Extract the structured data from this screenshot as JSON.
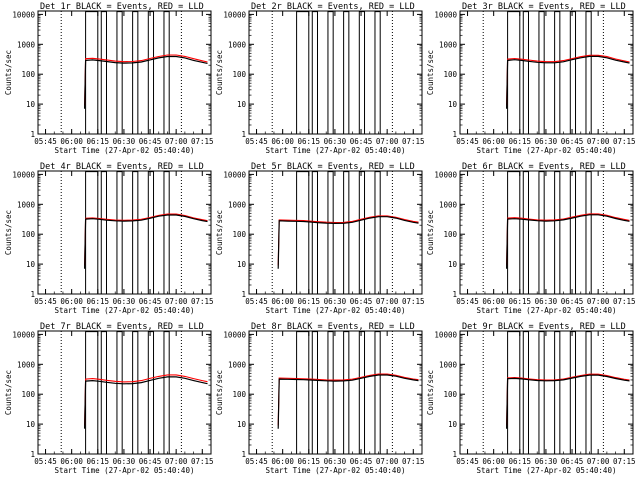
{
  "colors": {
    "events": "#000000",
    "lld": "#ff0000",
    "background": "#ffffff"
  },
  "common": {
    "x_ticks": [
      "05:45",
      "06:00",
      "06:15",
      "06:30",
      "06:45",
      "07:00",
      "07:15"
    ],
    "y_ticks": [
      "1",
      "10",
      "100",
      "1000",
      "10000"
    ],
    "ylabel": "Counts/sec",
    "xlabel": "Start Time (27-Apr-02 05:40:40)"
  },
  "chart_data": [
    {
      "type": "line",
      "title": "Det 1r BLACK = Events, RED = LLD",
      "xlabel": "Start Time (27-Apr-02 05:40:40)",
      "ylabel": "Counts/sec",
      "yscale": "log",
      "ylim": [
        1,
        13000
      ],
      "x": [
        "06:08",
        "06:12",
        "06:16",
        "06:20",
        "06:25",
        "06:30",
        "06:35",
        "06:40",
        "06:45",
        "06:50",
        "06:55",
        "07:00",
        "07:05",
        "07:10",
        "07:15",
        "07:18"
      ],
      "series": [
        {
          "name": "BLACK = Events",
          "values": [
            290,
            300,
            285,
            265,
            245,
            235,
            238,
            255,
            300,
            350,
            390,
            390,
            350,
            290,
            250,
            230
          ]
        },
        {
          "name": "RED = LLD",
          "values": [
            330,
            340,
            320,
            300,
            275,
            262,
            265,
            285,
            335,
            390,
            440,
            440,
            395,
            330,
            280,
            255
          ]
        }
      ],
      "dashed_x": [
        "05:54",
        "07:03"
      ],
      "gaps": [
        [
          "06:08",
          "06:15"
        ],
        [
          "06:17",
          "06:20"
        ],
        [
          "06:26",
          "06:29"
        ],
        [
          "06:35",
          "06:38"
        ],
        [
          "06:44",
          "06:47"
        ],
        [
          "06:53",
          "06:56"
        ]
      ]
    },
    {
      "type": "line",
      "title": "Det 2r BLACK = Events, RED = LLD",
      "xlabel": "Start Time (27-Apr-02 05:40:40)",
      "ylabel": "Counts/sec",
      "yscale": "log",
      "ylim": [
        1,
        13000
      ],
      "x": [],
      "series": [],
      "dashed_x": [
        "05:54",
        "07:03"
      ],
      "gaps": [
        [
          "06:08",
          "06:15"
        ],
        [
          "06:17",
          "06:20"
        ],
        [
          "06:26",
          "06:29"
        ],
        [
          "06:35",
          "06:38"
        ],
        [
          "06:44",
          "06:47"
        ],
        [
          "06:53",
          "06:56"
        ]
      ]
    },
    {
      "type": "line",
      "title": "Det 3r BLACK = Events, RED = LLD",
      "xlabel": "Start Time (27-Apr-02 05:40:40)",
      "ylabel": "Counts/sec",
      "yscale": "log",
      "ylim": [
        1,
        13000
      ],
      "x": [
        "06:08",
        "06:12",
        "06:16",
        "06:20",
        "06:25",
        "06:30",
        "06:35",
        "06:40",
        "06:45",
        "06:50",
        "06:55",
        "07:00",
        "07:05",
        "07:10",
        "07:15",
        "07:18"
      ],
      "series": [
        {
          "name": "BLACK = Events",
          "values": [
            290,
            305,
            290,
            270,
            250,
            240,
            240,
            260,
            305,
            355,
            395,
            395,
            355,
            295,
            255,
            235
          ]
        },
        {
          "name": "RED = LLD",
          "values": [
            320,
            335,
            318,
            298,
            275,
            262,
            262,
            285,
            332,
            385,
            430,
            430,
            388,
            322,
            278,
            255
          ]
        }
      ],
      "dashed_x": [
        "05:54",
        "07:03"
      ],
      "gaps": [
        [
          "06:08",
          "06:15"
        ],
        [
          "06:17",
          "06:20"
        ],
        [
          "06:26",
          "06:29"
        ],
        [
          "06:35",
          "06:38"
        ],
        [
          "06:44",
          "06:47"
        ],
        [
          "06:53",
          "06:56"
        ]
      ]
    },
    {
      "type": "line",
      "title": "Det 4r BLACK = Events, RED = LLD",
      "xlabel": "Start Time (27-Apr-02 05:40:40)",
      "ylabel": "Counts/sec",
      "yscale": "log",
      "ylim": [
        1,
        13000
      ],
      "x": [
        "06:08",
        "06:12",
        "06:16",
        "06:20",
        "06:25",
        "06:30",
        "06:35",
        "06:40",
        "06:45",
        "06:50",
        "06:55",
        "07:00",
        "07:05",
        "07:10",
        "07:15",
        "07:18"
      ],
      "series": [
        {
          "name": "BLACK = Events",
          "values": [
            320,
            330,
            315,
            295,
            280,
            275,
            278,
            295,
            340,
            400,
            440,
            440,
            395,
            330,
            285,
            265
          ]
        },
        {
          "name": "RED = LLD",
          "values": [
            340,
            352,
            335,
            315,
            298,
            292,
            296,
            315,
            362,
            425,
            470,
            470,
            422,
            352,
            305,
            282
          ]
        }
      ],
      "dashed_x": [
        "05:54",
        "07:03"
      ],
      "gaps": [
        [
          "06:08",
          "06:15"
        ],
        [
          "06:17",
          "06:20"
        ],
        [
          "06:26",
          "06:29"
        ],
        [
          "06:35",
          "06:38"
        ],
        [
          "06:44",
          "06:47"
        ],
        [
          "06:53",
          "06:56"
        ]
      ]
    },
    {
      "type": "line",
      "title": "Det 5r BLACK = Events, RED = LLD",
      "xlabel": "Start Time (27-Apr-02 05:40:40)",
      "ylabel": "Counts/sec",
      "yscale": "log",
      "ylim": [
        1,
        13000
      ],
      "x": [
        "05:58",
        "06:03",
        "06:08",
        "06:12",
        "06:16",
        "06:20",
        "06:25",
        "06:30",
        "06:35",
        "06:40",
        "06:45",
        "06:50",
        "06:55",
        "07:00",
        "07:05",
        "07:10",
        "07:15",
        "07:18"
      ],
      "series": [
        {
          "name": "BLACK = Events",
          "values": [
            280,
            275,
            270,
            265,
            255,
            245,
            235,
            230,
            232,
            250,
            295,
            345,
            385,
            385,
            345,
            290,
            250,
            235
          ]
        },
        {
          "name": "RED = LLD",
          "values": [
            300,
            295,
            290,
            284,
            273,
            262,
            252,
            246,
            248,
            268,
            315,
            368,
            410,
            410,
            368,
            310,
            268,
            252
          ]
        }
      ],
      "dashed_x": [
        "05:54",
        "07:03"
      ],
      "gaps": [
        [
          "06:08",
          "06:15"
        ],
        [
          "06:17",
          "06:20"
        ],
        [
          "06:26",
          "06:29"
        ],
        [
          "06:35",
          "06:38"
        ],
        [
          "06:44",
          "06:47"
        ],
        [
          "06:53",
          "06:56"
        ]
      ]
    },
    {
      "type": "line",
      "title": "Det 6r BLACK = Events, RED = LLD",
      "xlabel": "Start Time (27-Apr-02 05:40:40)",
      "ylabel": "Counts/sec",
      "yscale": "log",
      "ylim": [
        1,
        13000
      ],
      "x": [
        "06:08",
        "06:12",
        "06:16",
        "06:20",
        "06:25",
        "06:30",
        "06:35",
        "06:40",
        "06:45",
        "06:50",
        "06:55",
        "07:00",
        "07:05",
        "07:10",
        "07:15",
        "07:18"
      ],
      "series": [
        {
          "name": "BLACK = Events",
          "values": [
            320,
            330,
            318,
            300,
            282,
            275,
            280,
            300,
            345,
            400,
            445,
            445,
            400,
            335,
            290,
            270
          ]
        },
        {
          "name": "RED = LLD",
          "values": [
            345,
            356,
            342,
            322,
            302,
            295,
            300,
            322,
            370,
            430,
            478,
            478,
            430,
            360,
            312,
            290
          ]
        }
      ],
      "dashed_x": [
        "05:54",
        "07:03"
      ],
      "gaps": [
        [
          "06:08",
          "06:15"
        ],
        [
          "06:17",
          "06:20"
        ],
        [
          "06:26",
          "06:29"
        ],
        [
          "06:35",
          "06:38"
        ],
        [
          "06:44",
          "06:47"
        ],
        [
          "06:53",
          "06:56"
        ]
      ]
    },
    {
      "type": "line",
      "title": "Det 7r BLACK = Events, RED = LLD",
      "xlabel": "Start Time (27-Apr-02 05:40:40)",
      "ylabel": "Counts/sec",
      "yscale": "log",
      "ylim": [
        1,
        13000
      ],
      "x": [
        "06:08",
        "06:12",
        "06:16",
        "06:20",
        "06:25",
        "06:30",
        "06:35",
        "06:40",
        "06:45",
        "06:50",
        "06:55",
        "07:00",
        "07:05",
        "07:10",
        "07:15",
        "07:18"
      ],
      "series": [
        {
          "name": "BLACK = Events",
          "values": [
            275,
            285,
            270,
            250,
            232,
            222,
            226,
            245,
            290,
            340,
            380,
            380,
            340,
            285,
            245,
            225
          ]
        },
        {
          "name": "RED = LLD",
          "values": [
            320,
            332,
            315,
            292,
            270,
            258,
            262,
            285,
            338,
            395,
            442,
            442,
            395,
            332,
            285,
            262
          ]
        }
      ],
      "dashed_x": [
        "05:54",
        "07:03"
      ],
      "gaps": [
        [
          "06:08",
          "06:15"
        ],
        [
          "06:17",
          "06:20"
        ],
        [
          "06:26",
          "06:29"
        ],
        [
          "06:35",
          "06:38"
        ],
        [
          "06:44",
          "06:47"
        ],
        [
          "06:53",
          "06:56"
        ]
      ]
    },
    {
      "type": "line",
      "title": "Det 8r BLACK = Events, RED = LLD",
      "xlabel": "Start Time (27-Apr-02 05:40:40)",
      "ylabel": "Counts/sec",
      "yscale": "log",
      "ylim": [
        1,
        13000
      ],
      "x": [
        "05:58",
        "06:03",
        "06:08",
        "06:12",
        "06:16",
        "06:20",
        "06:25",
        "06:30",
        "06:35",
        "06:40",
        "06:45",
        "06:50",
        "06:55",
        "07:00",
        "07:05",
        "07:10",
        "07:15",
        "07:18"
      ],
      "series": [
        {
          "name": "BLACK = Events",
          "values": [
            320,
            315,
            310,
            305,
            298,
            290,
            280,
            275,
            278,
            295,
            340,
            395,
            440,
            440,
            400,
            340,
            300,
            285
          ]
        },
        {
          "name": "RED = LLD",
          "values": [
            345,
            340,
            335,
            328,
            320,
            312,
            302,
            296,
            300,
            318,
            366,
            425,
            472,
            472,
            430,
            365,
            322,
            305
          ]
        }
      ],
      "dashed_x": [
        "05:54",
        "07:03"
      ],
      "gaps": [
        [
          "06:08",
          "06:15"
        ],
        [
          "06:17",
          "06:20"
        ],
        [
          "06:26",
          "06:29"
        ],
        [
          "06:35",
          "06:38"
        ],
        [
          "06:44",
          "06:47"
        ],
        [
          "06:53",
          "06:56"
        ]
      ]
    },
    {
      "type": "line",
      "title": "Det 9r BLACK = Events, RED = LLD",
      "xlabel": "Start Time (27-Apr-02 05:40:40)",
      "ylabel": "Counts/sec",
      "yscale": "log",
      "ylim": [
        1,
        13000
      ],
      "x": [
        "06:08",
        "06:12",
        "06:16",
        "06:20",
        "06:25",
        "06:30",
        "06:35",
        "06:40",
        "06:45",
        "06:50",
        "06:55",
        "07:00",
        "07:05",
        "07:10",
        "07:15",
        "07:18"
      ],
      "series": [
        {
          "name": "BLACK = Events",
          "values": [
            330,
            338,
            325,
            305,
            288,
            280,
            284,
            302,
            345,
            395,
            435,
            435,
            392,
            335,
            295,
            278
          ]
        },
        {
          "name": "RED = LLD",
          "values": [
            352,
            360,
            346,
            325,
            306,
            298,
            302,
            322,
            368,
            422,
            465,
            465,
            418,
            358,
            315,
            296
          ]
        }
      ],
      "dashed_x": [
        "05:54",
        "07:03"
      ],
      "gaps": [
        [
          "06:08",
          "06:15"
        ],
        [
          "06:17",
          "06:20"
        ],
        [
          "06:26",
          "06:29"
        ],
        [
          "06:35",
          "06:38"
        ],
        [
          "06:44",
          "06:47"
        ],
        [
          "06:53",
          "06:56"
        ]
      ]
    }
  ]
}
